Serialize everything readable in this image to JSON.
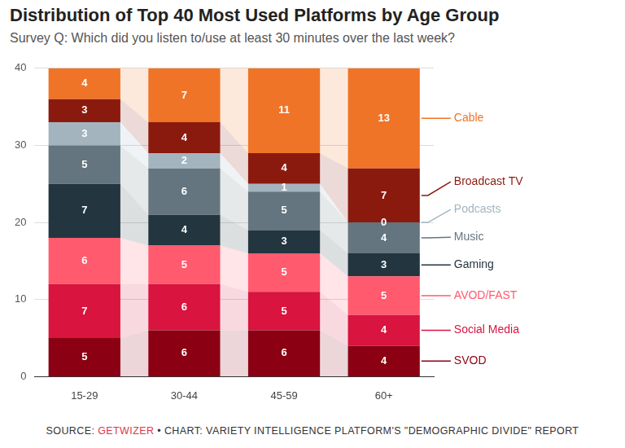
{
  "chart_data": {
    "type": "bar",
    "title": "Distribution of Top 40 Most Used Platforms by Age Group",
    "subtitle": "Survey Q: Which did you listen to/use at least 30 minutes over the last week?",
    "source": [
      "SOURCE: ",
      "GETWIZER",
      " • CHART: VARIETY INTELLIGENCE PLATFORM'S \"DEMOGRAPHIC DIVIDE\" REPORT"
    ],
    "categories": [
      "15-29",
      "30-44",
      "45-59",
      "60+"
    ],
    "series": [
      {
        "name": "SVOD",
        "color": "#8b0012",
        "values": [
          5,
          6,
          6,
          4
        ]
      },
      {
        "name": "Social Media",
        "color": "#d8143f",
        "values": [
          7,
          6,
          5,
          4
        ]
      },
      {
        "name": "AVOD/FAST",
        "color": "#ff5a6e",
        "values": [
          6,
          5,
          5,
          5
        ]
      },
      {
        "name": "Gaming",
        "color": "#233640",
        "values": [
          7,
          4,
          3,
          3
        ]
      },
      {
        "name": "Music",
        "color": "#64757f",
        "values": [
          5,
          6,
          5,
          4
        ]
      },
      {
        "name": "Podcasts",
        "color": "#a3b4bf",
        "values": [
          3,
          2,
          1,
          0
        ]
      },
      {
        "name": "Broadcast TV",
        "color": "#8b1a0e",
        "values": [
          3,
          4,
          4,
          7
        ]
      },
      {
        "name": "Cable",
        "color": "#f07427",
        "values": [
          4,
          7,
          11,
          13
        ]
      }
    ],
    "ylim": [
      0,
      40
    ],
    "yticks": [
      0,
      10,
      20,
      30,
      40
    ],
    "grid": true,
    "stacked": true,
    "data_labels": true,
    "legend": "right"
  }
}
